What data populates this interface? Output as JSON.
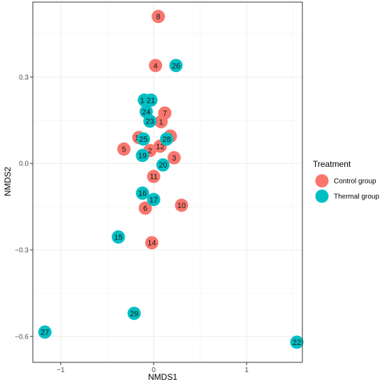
{
  "chart_data": {
    "type": "scatter",
    "xlabel": "NMDS1",
    "ylabel": "NMDS2",
    "xlim": [
      -1.3,
      1.6
    ],
    "ylim": [
      -0.69,
      0.56
    ],
    "x_ticks": [
      -1,
      0,
      1
    ],
    "x_tick_labels": [
      "−1",
      "0",
      "1"
    ],
    "y_ticks": [
      0.3,
      0.0,
      -0.3,
      -0.6
    ],
    "y_tick_labels": [
      "0.3",
      "0.0",
      "−0.3",
      "−0.6"
    ],
    "grid": true,
    "legend": {
      "title": "Treatment",
      "placement": "right",
      "entries": [
        "Control group",
        "Thermal group"
      ]
    },
    "colors": {
      "Control group": "#f8766d",
      "Thermal group": "#00bfc4"
    },
    "series": [
      {
        "name": "Control group",
        "points": [
          {
            "label": "8",
            "x": 0.05,
            "y": 0.51
          },
          {
            "label": "4",
            "x": 0.02,
            "y": 0.34
          },
          {
            "label": "7",
            "x": 0.12,
            "y": 0.175
          },
          {
            "label": "1",
            "x": 0.08,
            "y": 0.145
          },
          {
            "label": "9",
            "x": 0.18,
            "y": 0.095
          },
          {
            "label": "13",
            "x": -0.16,
            "y": 0.09
          },
          {
            "label": "5",
            "x": -0.32,
            "y": 0.05
          },
          {
            "label": "2",
            "x": -0.04,
            "y": 0.045
          },
          {
            "label": "12",
            "x": 0.07,
            "y": 0.06
          },
          {
            "label": "3",
            "x": 0.22,
            "y": 0.02
          },
          {
            "label": "11",
            "x": 0.0,
            "y": -0.045
          },
          {
            "label": "6",
            "x": -0.09,
            "y": -0.155
          },
          {
            "label": "10",
            "x": 0.3,
            "y": -0.145
          },
          {
            "label": "14",
            "x": -0.02,
            "y": -0.275
          }
        ]
      },
      {
        "name": "Thermal group",
        "points": [
          {
            "label": "26",
            "x": 0.24,
            "y": 0.34
          },
          {
            "label": "18",
            "x": -0.1,
            "y": 0.22
          },
          {
            "label": "21",
            "x": -0.03,
            "y": 0.22
          },
          {
            "label": "24",
            "x": -0.08,
            "y": 0.18
          },
          {
            "label": "23",
            "x": -0.04,
            "y": 0.147
          },
          {
            "label": "25",
            "x": -0.11,
            "y": 0.085
          },
          {
            "label": "28",
            "x": 0.14,
            "y": 0.085
          },
          {
            "label": "19",
            "x": -0.12,
            "y": 0.028
          },
          {
            "label": "20",
            "x": 0.1,
            "y": -0.005
          },
          {
            "label": "16",
            "x": -0.12,
            "y": -0.103
          },
          {
            "label": "17",
            "x": 0.0,
            "y": -0.125
          },
          {
            "label": "15",
            "x": -0.38,
            "y": -0.255
          },
          {
            "label": "29",
            "x": -0.21,
            "y": -0.52
          },
          {
            "label": "27",
            "x": -1.17,
            "y": -0.585
          },
          {
            "label": "22",
            "x": 1.54,
            "y": -0.62
          }
        ]
      }
    ]
  }
}
